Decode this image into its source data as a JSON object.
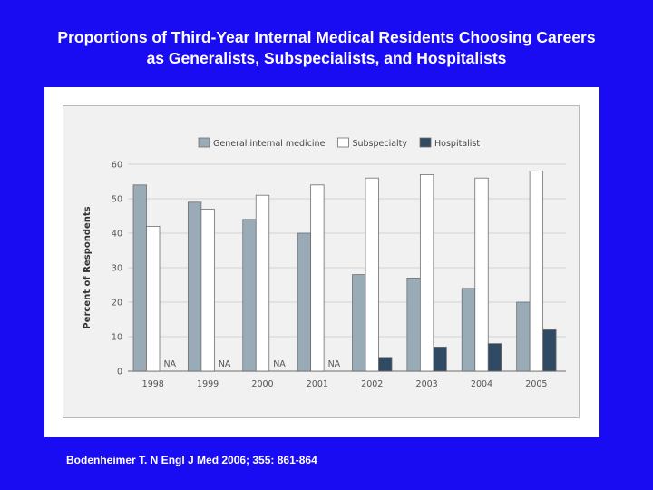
{
  "slide": {
    "title_line1": "Proportions of Third-Year Internal Medical Residents Choosing Careers",
    "title_line2": "as Generalists, Subspecialists, and Hospitalists",
    "citation": "Bodenheimer T. N Engl J Med 2006; 355: 861-864",
    "background_color": "#1a0cf2"
  },
  "chart_data": {
    "type": "bar",
    "title": "",
    "xlabel": "",
    "ylabel": "Percent of Respondents",
    "ylim": [
      0,
      60
    ],
    "yticks": [
      0,
      10,
      20,
      30,
      40,
      50,
      60
    ],
    "grid": true,
    "legend_position": "top",
    "categories": [
      "1998",
      "1999",
      "2000",
      "2001",
      "2002",
      "2003",
      "2004",
      "2005"
    ],
    "na_label": "NA",
    "series": [
      {
        "name": "General internal medicine",
        "color": "#9aabb8",
        "values": [
          54,
          49,
          44,
          40,
          28,
          27,
          24,
          20
        ]
      },
      {
        "name": "Subspecialty",
        "color": "#ffffff",
        "values": [
          42,
          47,
          51,
          54,
          56,
          57,
          56,
          58
        ]
      },
      {
        "name": "Hospitalist",
        "color": "#2f4a62",
        "values": [
          null,
          null,
          null,
          null,
          4,
          7,
          8,
          12
        ]
      }
    ]
  }
}
